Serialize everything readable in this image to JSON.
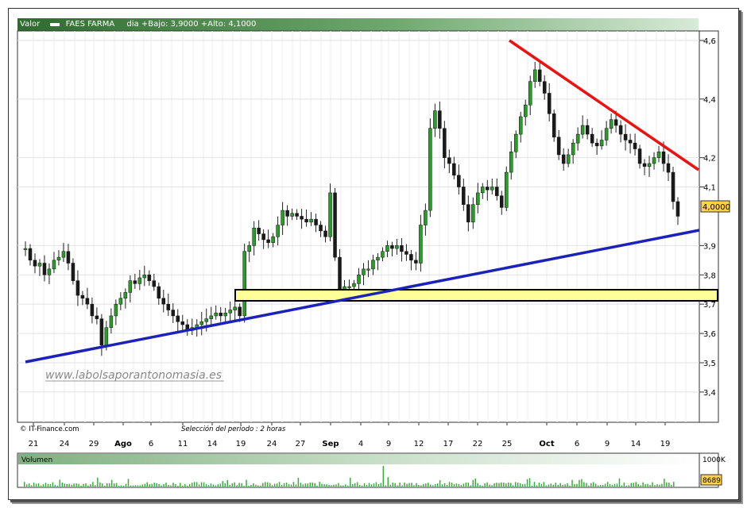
{
  "header": {
    "valor_label": "Valor",
    "symbol": "FAES FARMA",
    "info": "dia +Bajo: 3,9000 +Alto: 4,1000"
  },
  "chart_data": {
    "type": "candlestick",
    "yaxis": {
      "range": [
        3.22,
        4.67
      ],
      "ticks": [
        "4,6",
        "4,4",
        "4,2",
        "4,1",
        "3,9",
        "3,8",
        "3,7",
        "3,6",
        "3,5",
        "3,4"
      ],
      "tick_values": [
        4.6,
        4.4,
        4.2,
        4.1,
        3.9,
        3.8,
        3.7,
        3.6,
        3.5,
        3.4
      ],
      "last_price_label": "4,0000",
      "last_price": 4.0
    },
    "xaxis": {
      "tick_labels": [
        "21",
        "24",
        "29",
        "Ago",
        "6",
        "11",
        "14",
        "19",
        "24",
        "27",
        "Sep",
        "4",
        "9",
        "12",
        "17",
        "22",
        "25",
        "Oct",
        "6",
        "9",
        "14",
        "19"
      ],
      "bold_labels": [
        "Ago",
        "Sep",
        "Oct"
      ]
    },
    "resistance_line": {
      "color": "#ee1111",
      "from": 4.6,
      "to": 4.12
    },
    "support_line": {
      "color": "#1a22bb",
      "from": 3.5,
      "to": 3.92
    },
    "support_zone": {
      "low": 3.69,
      "high": 3.73,
      "color": "#ffff99"
    },
    "close_series": [
      3.89,
      3.85,
      3.83,
      3.84,
      3.8,
      3.82,
      3.85,
      3.86,
      3.88,
      3.84,
      3.78,
      3.73,
      3.72,
      3.7,
      3.66,
      3.65,
      3.56,
      3.62,
      3.66,
      3.7,
      3.72,
      3.74,
      3.78,
      3.77,
      3.79,
      3.8,
      3.78,
      3.76,
      3.72,
      3.7,
      3.68,
      3.66,
      3.64,
      3.63,
      3.61,
      3.62,
      3.63,
      3.64,
      3.65,
      3.66,
      3.67,
      3.66,
      3.67,
      3.68,
      3.69,
      3.66,
      3.88,
      3.9,
      3.96,
      3.94,
      3.92,
      3.91,
      3.93,
      3.97,
      4.02,
      4.0,
      4.01,
      4.0,
      3.99,
      3.98,
      3.99,
      3.97,
      3.95,
      3.93,
      4.08,
      3.86,
      3.74,
      3.76,
      3.76,
      3.77,
      3.8,
      3.82,
      3.82,
      3.85,
      3.86,
      3.88,
      3.9,
      3.89,
      3.9,
      3.88,
      3.87,
      3.85,
      3.84,
      3.97,
      4.02,
      4.3,
      4.36,
      4.3,
      4.2,
      4.18,
      4.14,
      4.1,
      4.04,
      3.98,
      4.04,
      4.08,
      4.1,
      4.09,
      4.1,
      4.07,
      4.03,
      4.15,
      4.22,
      4.28,
      4.34,
      4.38,
      4.46,
      4.5,
      4.46,
      4.42,
      4.35,
      4.27,
      4.21,
      4.18,
      4.21,
      4.25,
      4.28,
      4.31,
      4.28,
      4.25,
      4.24,
      4.26,
      4.3,
      4.33,
      4.31,
      4.28,
      4.26,
      4.25,
      4.23,
      4.18,
      4.17,
      4.18,
      4.2,
      4.22,
      4.18,
      4.15,
      4.05,
      4.0
    ],
    "source": "© IT-Finance.com",
    "period_note": "Selección del período : 2 horas",
    "watermark": "www.labolsaporantonomasia.es"
  },
  "volume": {
    "label": "Volumen",
    "axis_label": "1000K",
    "last_label": "8689"
  }
}
